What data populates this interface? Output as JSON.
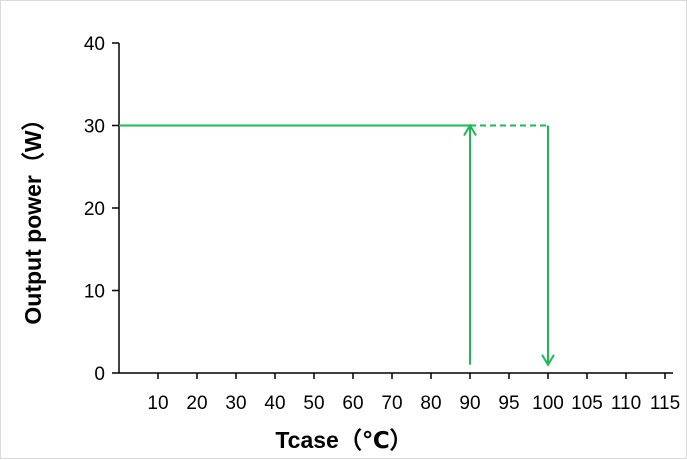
{
  "chart_data": {
    "type": "line",
    "xlabel": "Tcase（℃）",
    "ylabel": "Output power（W）",
    "x_ticks": [
      10,
      20,
      30,
      40,
      50,
      60,
      70,
      80,
      90,
      95,
      100,
      105,
      110,
      115
    ],
    "y_ticks": [
      0,
      10,
      20,
      30,
      40
    ],
    "ylim": [
      0,
      40
    ],
    "grid": false,
    "series": [
      {
        "style": "solid",
        "points": [
          {
            "x": 0,
            "y": 30
          },
          {
            "x": 90,
            "y": 30
          }
        ]
      },
      {
        "style": "dashed",
        "points": [
          {
            "x": 90,
            "y": 30
          },
          {
            "x": 100,
            "y": 30
          }
        ]
      }
    ],
    "arrows": [
      {
        "from": {
          "x": 90,
          "y": 1
        },
        "to": {
          "x": 90,
          "y": 30
        },
        "direction": "up"
      },
      {
        "from": {
          "x": 100,
          "y": 30
        },
        "to": {
          "x": 100,
          "y": 1
        },
        "direction": "down"
      }
    ],
    "colors": {
      "line": "#1db954",
      "axis": "#000000"
    }
  }
}
